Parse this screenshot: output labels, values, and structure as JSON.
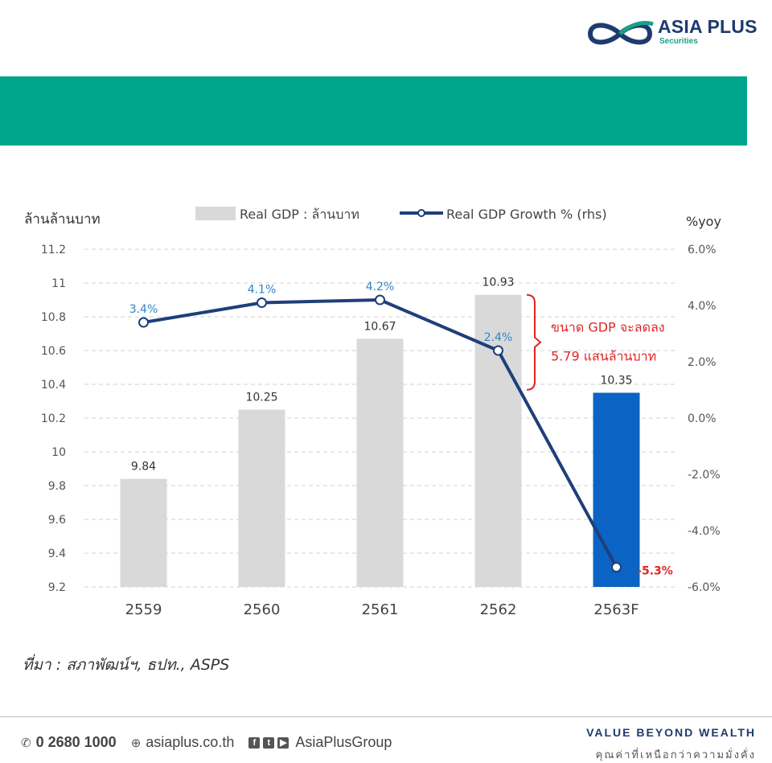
{
  "brand": {
    "name": "ASIA PLUS",
    "sub": "Securities"
  },
  "chart_data": {
    "type": "bar+line",
    "categories": [
      "2559",
      "2560",
      "2561",
      "2562",
      "2563F"
    ],
    "y_left": {
      "label": "ล้านล้านบาท",
      "min": 9.2,
      "max": 11.2,
      "step": 0.2,
      "ticks": [
        "11.2",
        "11",
        "10.8",
        "10.6",
        "10.4",
        "10.2",
        "10",
        "9.8",
        "9.6",
        "9.4",
        "9.2"
      ]
    },
    "y_right": {
      "label": "%yoy",
      "min": -6.0,
      "max": 6.0,
      "ticks": [
        "6.0%",
        "4.0%",
        "2.0%",
        "0.0%",
        "-2.0%",
        "-4.0%",
        "-6.0%"
      ]
    },
    "bars": {
      "name": "Real GDP : ล้านบาท",
      "values": [
        9.84,
        10.25,
        10.67,
        10.93,
        10.35
      ],
      "labels": [
        "9.84",
        "10.25",
        "10.67",
        "10.93",
        "10.35"
      ],
      "colors": [
        "#d9d9d9",
        "#d9d9d9",
        "#d9d9d9",
        "#d9d9d9",
        "#0b63c4"
      ]
    },
    "line": {
      "name": "Real GDP Growth % (rhs)",
      "values": [
        3.4,
        4.1,
        4.2,
        2.4,
        -5.3
      ],
      "labels": [
        "3.4%",
        "4.1%",
        "4.2%",
        "2.4%",
        "-5.3%"
      ],
      "color": "#1f3f7a",
      "label_color": "#2e86c9",
      "last_label_color": "#e02424"
    },
    "annotation": {
      "line1": "ขนาด GDP จะลดลง",
      "line2": "5.79 แสนล้านบาท",
      "color": "#e02424"
    },
    "grid": true,
    "legend": "top"
  },
  "source": "ที่มา :  สภาพัฒน์ฯ, ธปท., ASPS",
  "footer": {
    "phone": "0 2680 1000",
    "website": "asiaplus.co.th",
    "social": "AsiaPlusGroup",
    "tagline": "VALUE BEYOND WEALTH",
    "tagline_th": "คุณค่าที่เหนือกว่าความมั่งคั่ง"
  }
}
